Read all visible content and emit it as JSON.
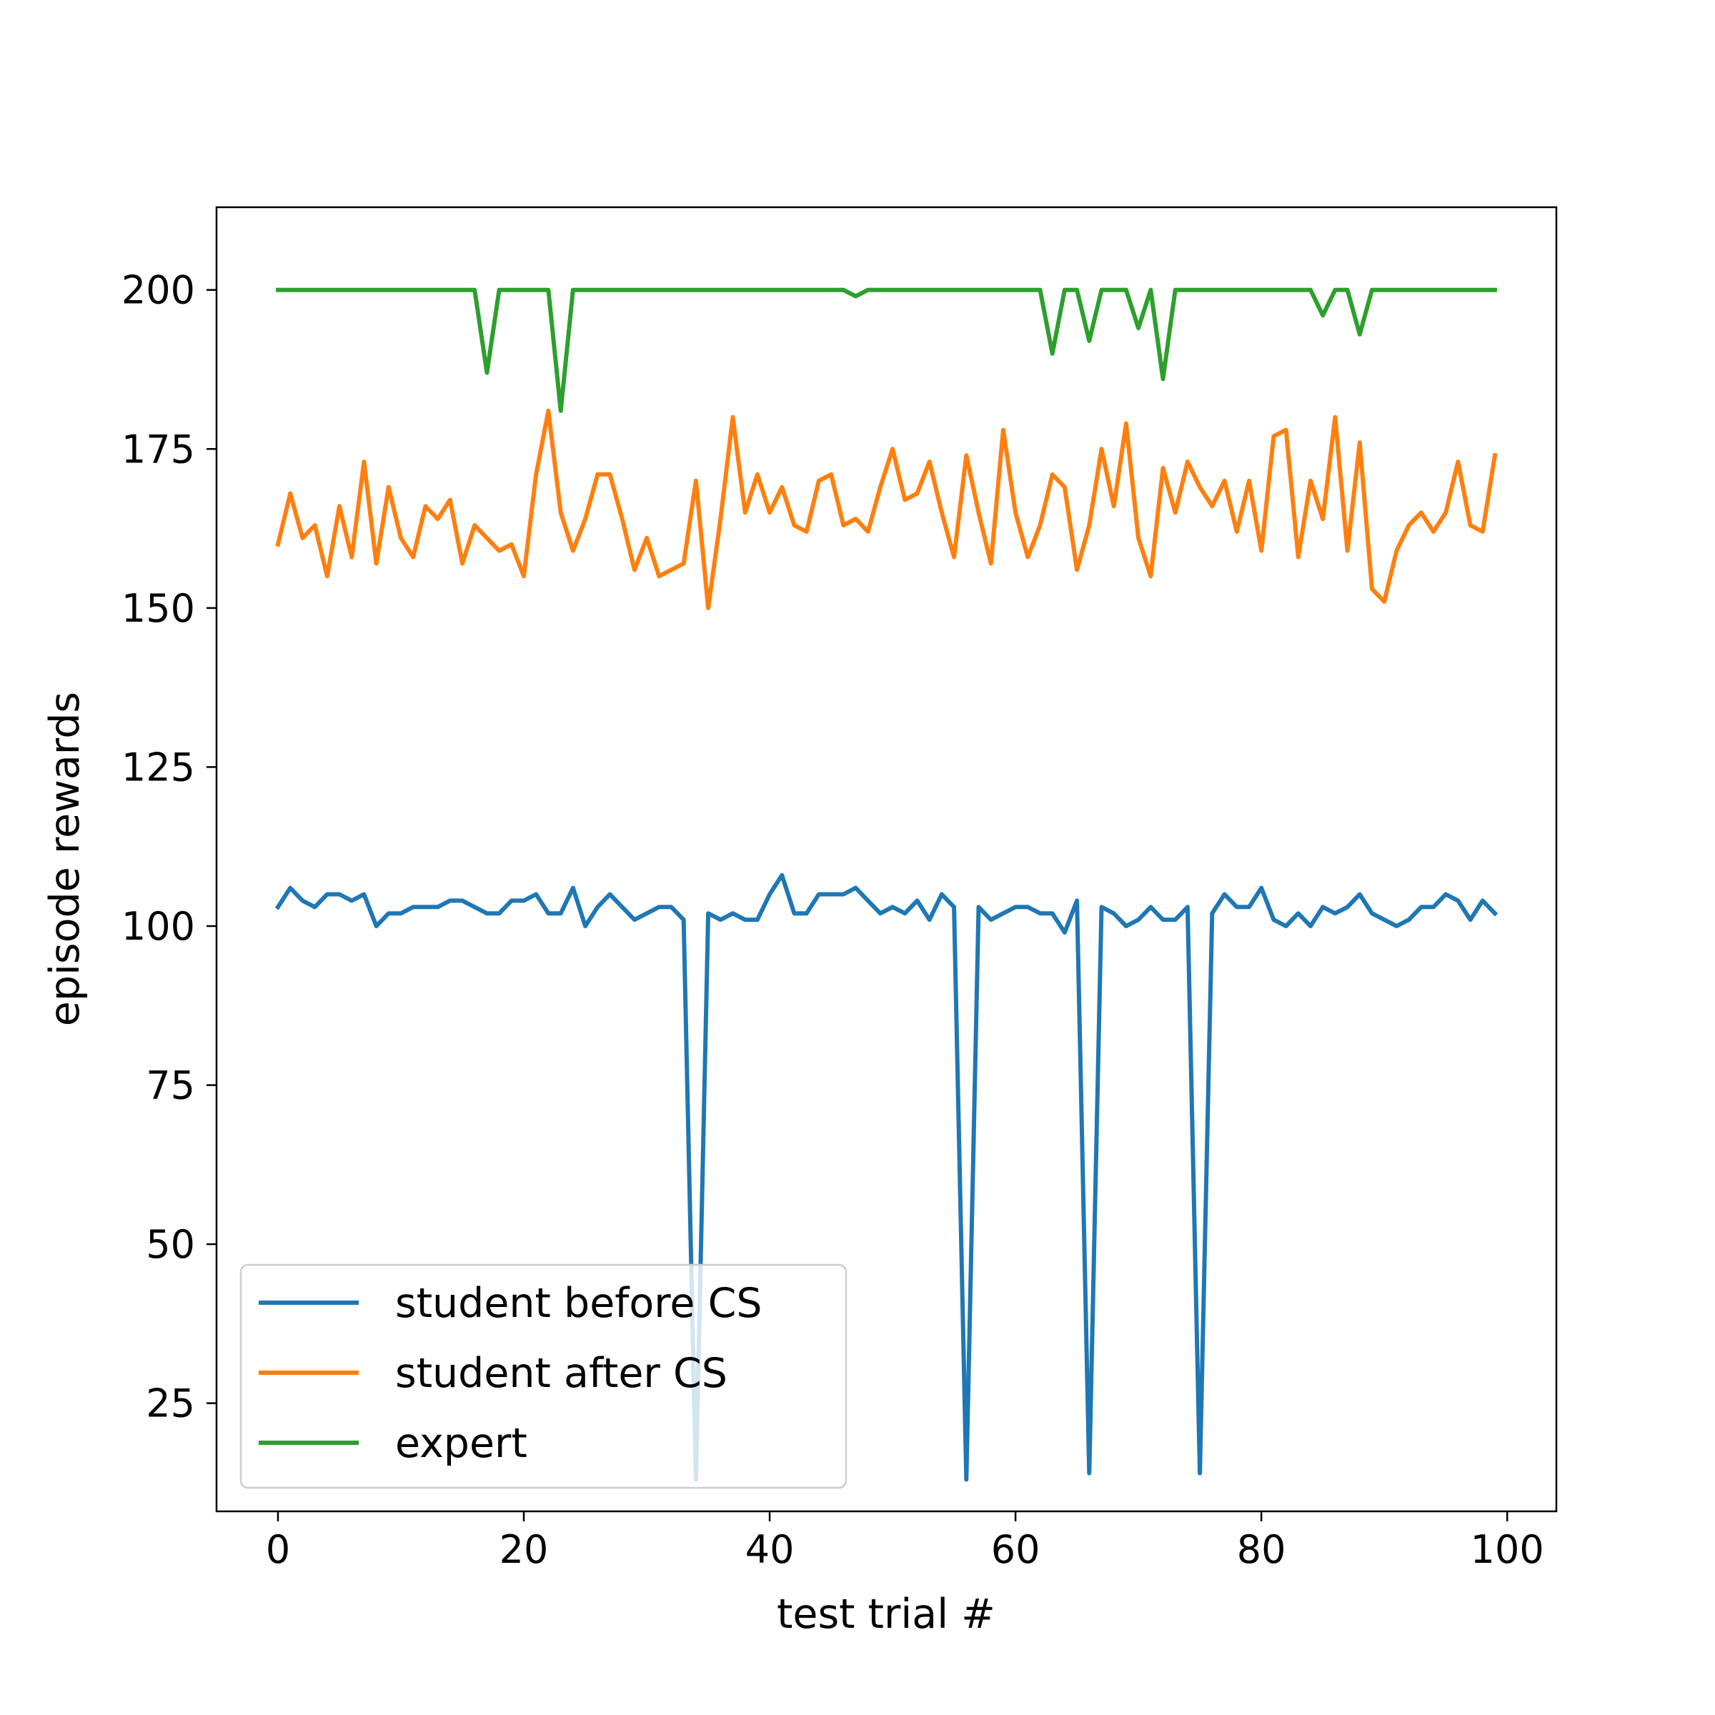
{
  "chart_data": {
    "type": "line",
    "title": "",
    "xlabel": "test trial #",
    "ylabel": "episode rewards",
    "xlim": [
      -5,
      104
    ],
    "ylim": [
      8,
      213
    ],
    "xticks": [
      0,
      20,
      40,
      60,
      80,
      100
    ],
    "yticks": [
      25,
      50,
      75,
      100,
      125,
      150,
      175,
      200
    ],
    "grid": false,
    "legend_position": "lower-left",
    "series": [
      {
        "name": "student before CS",
        "color": "#1f77b4",
        "values": [
          103,
          106,
          104,
          103,
          105,
          105,
          104,
          105,
          100,
          102,
          102,
          103,
          103,
          103,
          104,
          104,
          103,
          102,
          102,
          104,
          104,
          105,
          102,
          102,
          106,
          100,
          103,
          105,
          103,
          101,
          102,
          103,
          103,
          101,
          13,
          102,
          101,
          102,
          101,
          101,
          105,
          108,
          102,
          102,
          105,
          105,
          105,
          106,
          104,
          102,
          103,
          102,
          104,
          101,
          105,
          103,
          13,
          103,
          101,
          102,
          103,
          103,
          102,
          102,
          99,
          104,
          14,
          103,
          102,
          100,
          101,
          103,
          101,
          101,
          103,
          14,
          102,
          105,
          103,
          103,
          106,
          101,
          100,
          102,
          100,
          103,
          102,
          103,
          105,
          102,
          101,
          100,
          101,
          103,
          103,
          105,
          104,
          101,
          104,
          102
        ]
      },
      {
        "name": "student after CS",
        "color": "#ff7f0e",
        "values": [
          160,
          168,
          161,
          163,
          155,
          166,
          158,
          173,
          157,
          169,
          161,
          158,
          166,
          164,
          167,
          157,
          163,
          161,
          159,
          160,
          155,
          171,
          181,
          165,
          159,
          164,
          171,
          171,
          164,
          156,
          161,
          155,
          156,
          157,
          170,
          150,
          164,
          180,
          165,
          171,
          165,
          169,
          163,
          162,
          170,
          171,
          163,
          164,
          162,
          169,
          175,
          167,
          168,
          173,
          165,
          158,
          174,
          165,
          157,
          178,
          165,
          158,
          163,
          171,
          169,
          156,
          163,
          175,
          166,
          179,
          161,
          155,
          172,
          165,
          173,
          169,
          166,
          170,
          162,
          170,
          159,
          177,
          178,
          158,
          170,
          164,
          180,
          159,
          176,
          153,
          151,
          159,
          163,
          165,
          162,
          165,
          173,
          163,
          162,
          174
        ]
      },
      {
        "name": "expert",
        "color": "#2ca02c",
        "values": [
          200,
          200,
          200,
          200,
          200,
          200,
          200,
          200,
          200,
          200,
          200,
          200,
          200,
          200,
          200,
          200,
          200,
          187,
          200,
          200,
          200,
          200,
          200,
          181,
          200,
          200,
          200,
          200,
          200,
          200,
          200,
          200,
          200,
          200,
          200,
          200,
          200,
          200,
          200,
          200,
          200,
          200,
          200,
          200,
          200,
          200,
          200,
          199,
          200,
          200,
          200,
          200,
          200,
          200,
          200,
          200,
          200,
          200,
          200,
          200,
          200,
          200,
          200,
          190,
          200,
          200,
          192,
          200,
          200,
          200,
          194,
          200,
          186,
          200,
          200,
          200,
          200,
          200,
          200,
          200,
          200,
          200,
          200,
          200,
          200,
          196,
          200,
          200,
          193,
          200,
          200,
          200,
          200,
          200,
          200,
          200,
          200,
          200,
          200,
          200
        ]
      }
    ]
  }
}
